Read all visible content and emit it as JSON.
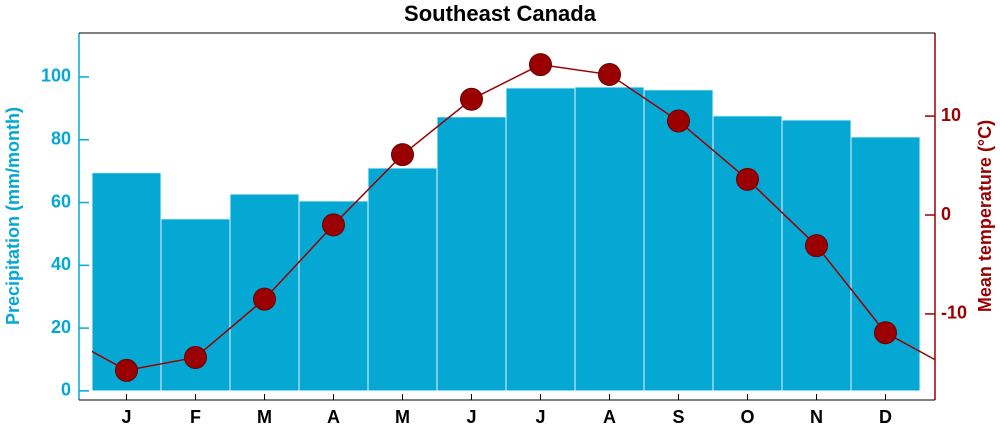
{
  "chart_data": {
    "type": "bar",
    "title": "Southeast Canada",
    "categories": [
      "J",
      "F",
      "M",
      "A",
      "M",
      "J",
      "J",
      "A",
      "S",
      "O",
      "N",
      "D"
    ],
    "series": [
      {
        "name": "Precipitation (mm/month)",
        "type": "bar",
        "color": "#04a8d3",
        "values": [
          69.5,
          54.8,
          62.7,
          60.5,
          71,
          87.3,
          96.5,
          96.8,
          95.9,
          87.6,
          86.3,
          80.9
        ]
      },
      {
        "name": "Mean temperature (°C)",
        "type": "line",
        "axis": "y2",
        "color": "#9b0000",
        "values": [
          -15.7,
          -14.4,
          -8.5,
          -1.0,
          6.1,
          11.7,
          15.2,
          14.2,
          9.5,
          3.6,
          -3.1,
          -11.9
        ]
      }
    ],
    "ylim": [
      -2.9,
      114
    ],
    "yticks": [
      0,
      20,
      40,
      60,
      80,
      100
    ],
    "y2lim": [
      -18.7,
      18.4
    ],
    "y2ticks": [
      -10,
      0,
      10
    ]
  }
}
